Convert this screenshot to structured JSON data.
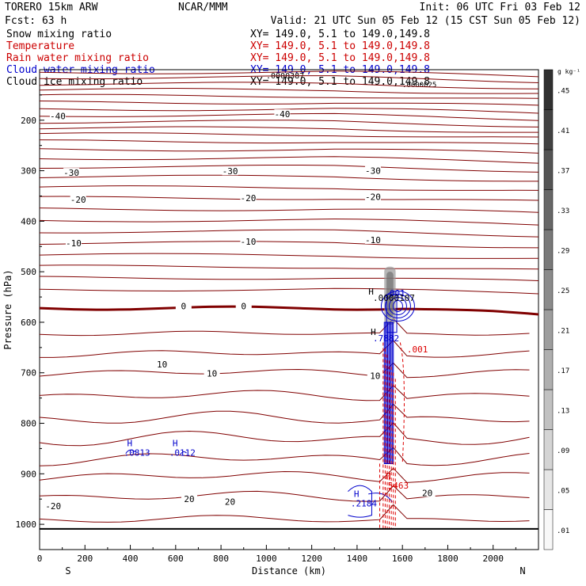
{
  "header": {
    "model": "TORERO  15km ARW",
    "center": "NCAR/MMM",
    "init": "Init: 06 UTC Fri 03 Feb 12",
    "fcst": "Fcst:   63 h",
    "valid": "Valid: 21 UTC Sun 05 Feb 12 (15 CST Sun 05 Feb 12)"
  },
  "fields": [
    {
      "name": "Snow mixing ratio",
      "xy": "XY= 149.0,  5.1 to 149.0,149.8",
      "color": "#000000"
    },
    {
      "name": "Temperature",
      "xy": "XY= 149.0,  5.1 to 149.0,149.8",
      "color": "#cc0000"
    },
    {
      "name": "Rain water mixing ratio",
      "xy": "XY= 149.0,  5.1 to 149.0,149.8",
      "color": "#cc0000"
    },
    {
      "name": "Cloud water mixing ratio",
      "xy": "XY= 149.0,  5.1 to 149.0,149.8",
      "color": "#0000cc"
    },
    {
      "name": "Cloud ice mixing ratio",
      "xy": "XY= 149.0,  5.1 to 149.0,149.8",
      "color": "#000000"
    }
  ],
  "colors": {
    "temperature": "#800000",
    "zero_isotherm": "#800000",
    "cloud_water": "#0000cc",
    "rain_water": "#dd0000",
    "ground": "#000000"
  },
  "annotations": {
    "snow_max": ".0000387",
    "ice_max": ".0000025",
    "ice_h_label": ".0000107",
    "cw_top": ".001",
    "cw_h1": ".0813",
    "cw_h2": ".0112",
    "cw_h3": ".2184",
    "cw_h4": ".7882",
    "rain_001": ".001",
    "rain_h": ".5463",
    "h": "H"
  },
  "chart_data": {
    "type": "contour",
    "xlabel": "Distance (km)",
    "ylabel": "Pressure (hPa)",
    "xlim": [
      0,
      2200
    ],
    "ylim": [
      1050,
      100
    ],
    "x_ticks": [
      0,
      200,
      400,
      600,
      800,
      1000,
      1200,
      1400,
      1600,
      1800,
      2000
    ],
    "y_ticks": [
      200,
      300,
      400,
      500,
      600,
      700,
      800,
      900,
      1000
    ],
    "x_end_labels": {
      "left": "S",
      "right": "N"
    },
    "colorbar": {
      "unit": "g kg⁻¹",
      "labels": [
        ".01",
        ".05",
        ".09",
        ".13",
        ".17",
        ".21",
        ".25",
        ".29",
        ".33",
        ".37",
        ".41",
        ".45"
      ]
    },
    "temperature_labels": [
      {
        "value": "-40",
        "x": 80,
        "p": 192
      },
      {
        "value": "-40",
        "x": 1070,
        "p": 188
      },
      {
        "value": "-30",
        "x": 140,
        "p": 304
      },
      {
        "value": "-30",
        "x": 840,
        "p": 301
      },
      {
        "value": "-30",
        "x": 1470,
        "p": 300
      },
      {
        "value": "-20",
        "x": 170,
        "p": 357
      },
      {
        "value": "-20",
        "x": 920,
        "p": 354
      },
      {
        "value": "-20",
        "x": 1470,
        "p": 352
      },
      {
        "value": "-10",
        "x": 150,
        "p": 443
      },
      {
        "value": "-10",
        "x": 920,
        "p": 440
      },
      {
        "value": "-10",
        "x": 1470,
        "p": 437
      },
      {
        "value": "0",
        "x": 635,
        "p": 568
      },
      {
        "value": "0",
        "x": 900,
        "p": 568
      },
      {
        "value": "10",
        "x": 540,
        "p": 683
      },
      {
        "value": "10",
        "x": 760,
        "p": 701
      },
      {
        "value": "10",
        "x": 1480,
        "p": 706
      },
      {
        "value": "20",
        "x": 660,
        "p": 950
      },
      {
        "value": "20",
        "x": 840,
        "p": 955
      },
      {
        "value": "20",
        "x": 1710,
        "p": 938
      },
      {
        "value": "-20",
        "x": 60,
        "p": 964
      }
    ],
    "maxima": [
      {
        "label": "H",
        "value": ".0813",
        "x": 400,
        "p": 855
      },
      {
        "label": "H",
        "value": ".0112",
        "x": 600,
        "p": 855
      },
      {
        "label": "H",
        "value": ".2184",
        "x": 1400,
        "p": 955
      },
      {
        "label": "H",
        "value": ".5463",
        "x": 1540,
        "p": 920
      }
    ]
  }
}
